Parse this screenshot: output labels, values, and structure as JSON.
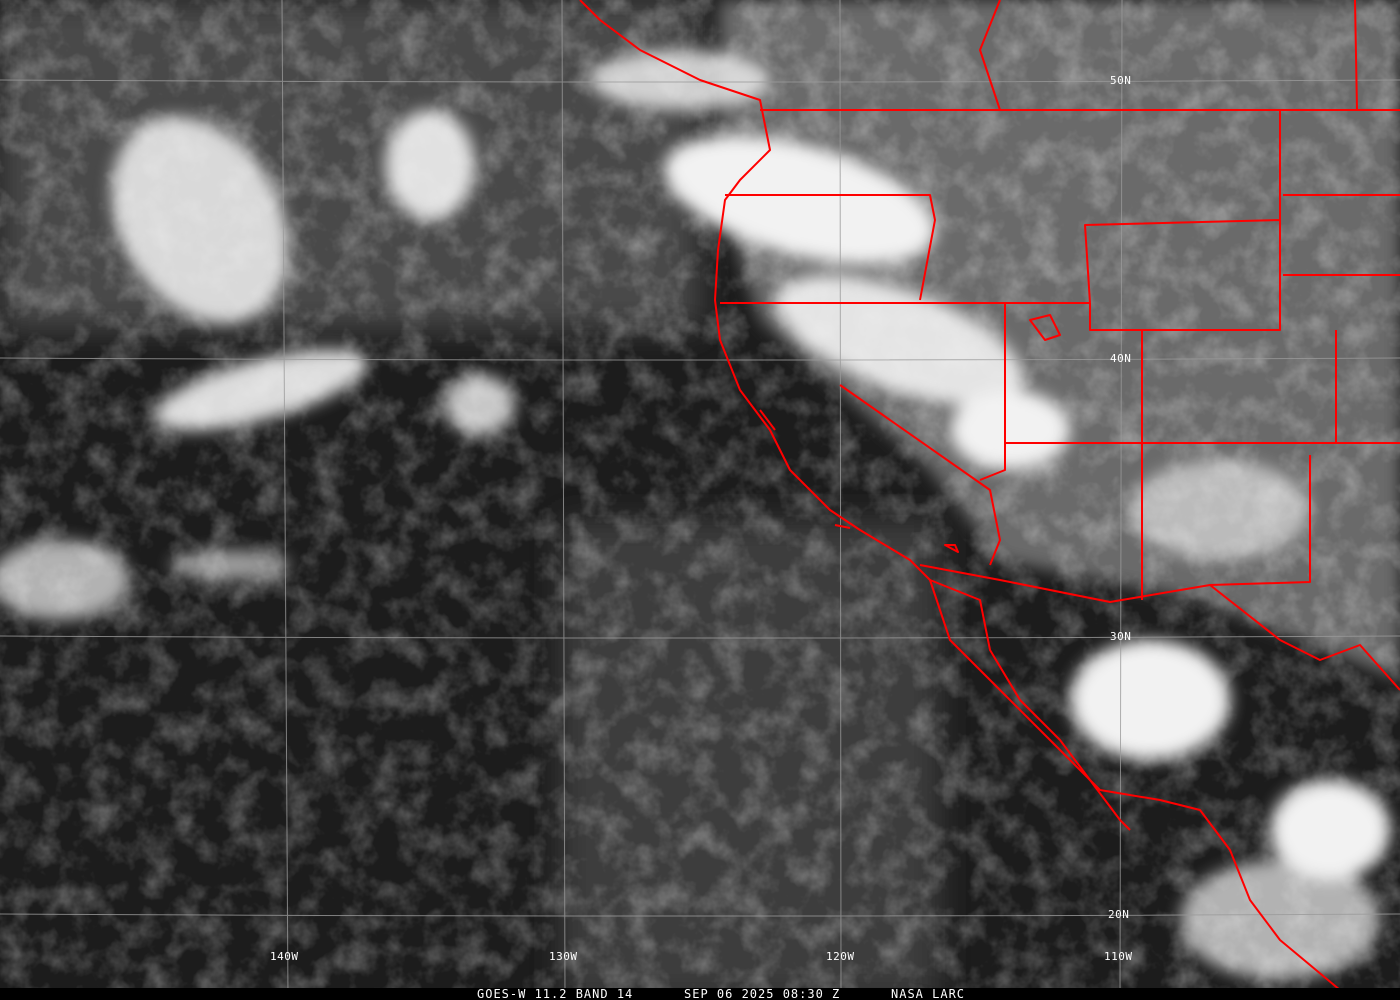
{
  "map": {
    "type": "satellite infrared image",
    "border_color": "#ff0000",
    "grid_color": "#9a9a9a",
    "latitude_labels": [
      "50N",
      "40N",
      "30N",
      "20N"
    ],
    "longitude_labels": [
      "140W",
      "130W",
      "120W",
      "110W"
    ]
  },
  "caption": {
    "product": "GOES-W 11.2 BAND 14",
    "timestamp": "SEP 06 2025 08:30 Z",
    "source": "NASA LARC"
  }
}
